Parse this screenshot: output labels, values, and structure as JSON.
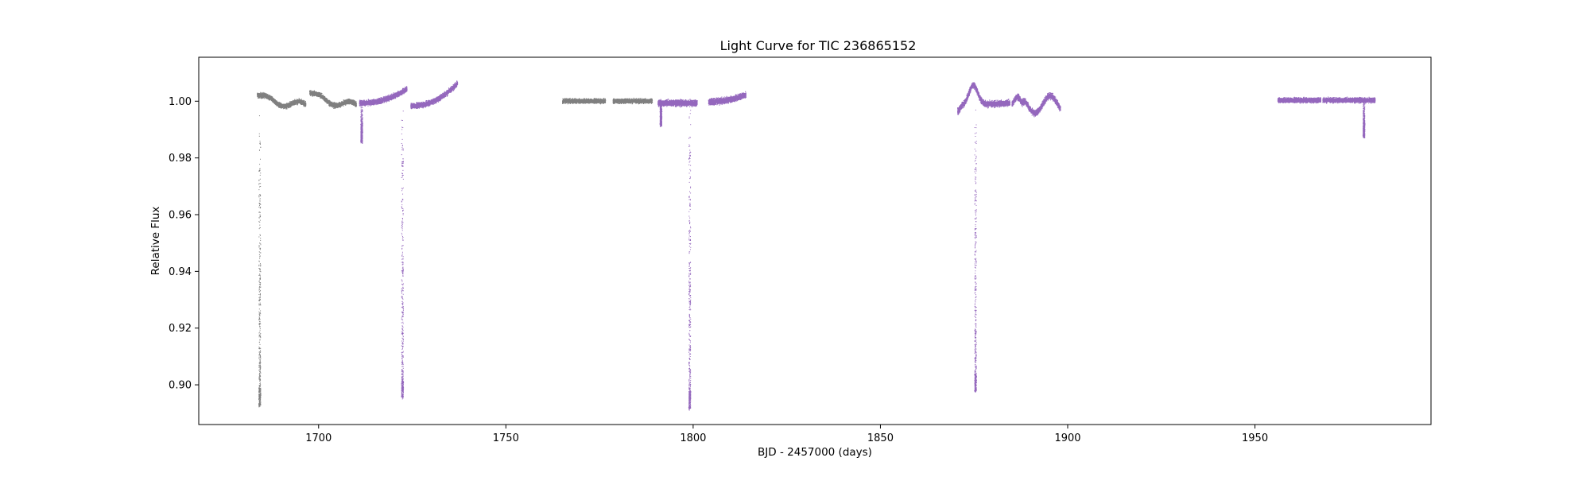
{
  "chart_data": {
    "type": "scatter",
    "title": "Light Curve for TIC 236865152",
    "xlabel": "BJD - 2457000 (days)",
    "ylabel": "Relative Flux",
    "xlim": [
      1668,
      1997
    ],
    "ylim": [
      0.886,
      1.0155
    ],
    "xticks": [
      1700,
      1750,
      1800,
      1850,
      1900,
      1950
    ],
    "xtick_labels": [
      "1700",
      "1750",
      "1800",
      "1850",
      "1900",
      "1950"
    ],
    "yticks": [
      0.9,
      0.92,
      0.94,
      0.96,
      0.98,
      1.0
    ],
    "ytick_labels": [
      "0.90",
      "0.92",
      "0.94",
      "0.96",
      "0.98",
      "1.00"
    ],
    "grid": false,
    "series": [
      {
        "name": "gray sectors",
        "color": "#7f7f7f",
        "segments": [
          {
            "x0": 1683.5,
            "x1": 1696.5,
            "f0": 1.0025,
            "f1": 0.9985,
            "amp": 0.0012,
            "shape": "decline"
          },
          {
            "x0": 1697.5,
            "x1": 1710.0,
            "f0": 1.0035,
            "f1": 0.9985,
            "amp": 0.0012,
            "shape": "decline"
          },
          {
            "x0": 1765.0,
            "x1": 1776.5,
            "f0": 1.0002,
            "f1": 1.0002,
            "amp": 0.0011,
            "shape": "flat"
          },
          {
            "x0": 1778.5,
            "x1": 1789.0,
            "f0": 1.0002,
            "f1": 1.0002,
            "amp": 0.0011,
            "shape": "flat"
          }
        ],
        "dips": [
          {
            "t": 1684.2,
            "depth": 0.893,
            "width": 0.35
          }
        ]
      },
      {
        "name": "purple sectors",
        "color": "#9467bd",
        "segments": [
          {
            "x0": 1710.8,
            "x1": 1723.5,
            "f0": 0.9995,
            "f1": 1.0045,
            "amp": 0.0013,
            "shape": "rise"
          },
          {
            "x0": 1724.5,
            "x1": 1737.0,
            "f0": 0.9985,
            "f1": 1.0065,
            "amp": 0.0013,
            "shape": "rise"
          },
          {
            "x0": 1790.5,
            "x1": 1801.0,
            "f0": 0.9995,
            "f1": 0.9995,
            "amp": 0.0015,
            "shape": "flat"
          },
          {
            "x0": 1804.0,
            "x1": 1814.0,
            "f0": 1.0,
            "f1": 1.0025,
            "amp": 0.0015,
            "shape": "rise"
          },
          {
            "x0": 1870.5,
            "x1": 1884.5,
            "f0": 0.9985,
            "f1": 0.9995,
            "amp": 0.0015,
            "shape": "hump"
          },
          {
            "x0": 1885.0,
            "x1": 1898.0,
            "f0": 0.999,
            "f1": 1.0,
            "amp": 0.0015,
            "shape": "wave"
          },
          {
            "x0": 1956.0,
            "x1": 1967.5,
            "f0": 1.0005,
            "f1": 1.0005,
            "amp": 0.0012,
            "shape": "flat"
          },
          {
            "x0": 1968.0,
            "x1": 1982.0,
            "f0": 1.0005,
            "f1": 1.0005,
            "amp": 0.0012,
            "shape": "flat"
          }
        ],
        "dips": [
          {
            "t": 1711.4,
            "depth": 0.986,
            "width": 0.3
          },
          {
            "t": 1722.3,
            "depth": 0.896,
            "width": 0.35
          },
          {
            "t": 1791.3,
            "depth": 0.992,
            "width": 0.3
          },
          {
            "t": 1799.0,
            "depth": 0.892,
            "width": 0.35
          },
          {
            "t": 1875.3,
            "depth": 0.898,
            "width": 0.35
          },
          {
            "t": 1979.0,
            "depth": 0.988,
            "width": 0.3
          }
        ]
      }
    ]
  }
}
